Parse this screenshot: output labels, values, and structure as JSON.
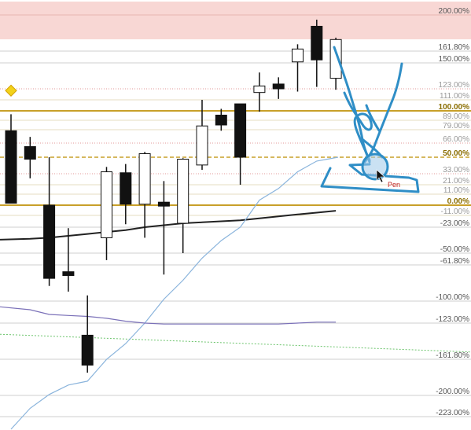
{
  "chart_data": {
    "type": "candlestick",
    "title": "",
    "xlabel": "",
    "ylabel": "",
    "ylim": [
      -230,
      210
    ],
    "grid": false,
    "levels": [
      {
        "value": 200,
        "label": "200.00%",
        "style": "band-top",
        "color": "#f4cccc"
      },
      {
        "value": 161.8,
        "label": "161.80%",
        "style": "gray"
      },
      {
        "value": 150,
        "label": "150.00%",
        "style": "gray"
      },
      {
        "value": 123,
        "label": "123.00%",
        "style": "red-dotted"
      },
      {
        "value": 111,
        "label": "111.00%",
        "style": "faint"
      },
      {
        "value": 100,
        "label": "100.00%",
        "style": "gold-solid"
      },
      {
        "value": 89,
        "label": "89.00%",
        "style": "faint"
      },
      {
        "value": 79,
        "label": "79.00%",
        "style": "faint"
      },
      {
        "value": 66,
        "label": "66.00%",
        "style": "red-dotted"
      },
      {
        "value": 50,
        "label": "50.00%",
        "style": "gold-dashed"
      },
      {
        "value": 33,
        "label": "33.00%",
        "style": "red-dotted"
      },
      {
        "value": 21,
        "label": "21.00%",
        "style": "faint"
      },
      {
        "value": 11,
        "label": "11.00%",
        "style": "faint"
      },
      {
        "value": 0,
        "label": "0.00%",
        "style": "gold-solid"
      },
      {
        "value": -11,
        "label": "-11.00%",
        "style": "faint"
      },
      {
        "value": -23,
        "label": "-23.00%",
        "style": "gray"
      },
      {
        "value": -50,
        "label": "-50.00%",
        "style": "gray"
      },
      {
        "value": -61.8,
        "label": "-61.80%",
        "style": "gray"
      },
      {
        "value": -100,
        "label": "-100.00%",
        "style": "gray"
      },
      {
        "value": -123,
        "label": "-123.00%",
        "style": "gray"
      },
      {
        "value": -161.8,
        "label": "-161.80%",
        "style": "gray"
      },
      {
        "value": -200,
        "label": "-200.00%",
        "style": "gray"
      },
      {
        "value": -223,
        "label": "-223.00%",
        "style": "gray"
      }
    ],
    "candles": [
      {
        "open": 78,
        "close": 2,
        "high": 96,
        "low": 2
      },
      {
        "open": 62,
        "close": 48,
        "high": 72,
        "low": 28
      },
      {
        "open": 0,
        "close": -76,
        "high": 50,
        "low": -84
      },
      {
        "open": -69,
        "close": -73,
        "high": -24,
        "low": -90
      },
      {
        "open": -136,
        "close": -168,
        "high": -94,
        "low": -176
      },
      {
        "open": -34,
        "close": 35,
        "high": 40,
        "low": -57
      },
      {
        "open": 34,
        "close": 1,
        "high": 43,
        "low": -20
      },
      {
        "open": 1,
        "close": 54,
        "high": 56,
        "low": -34
      },
      {
        "open": 3,
        "close": -1,
        "high": 25,
        "low": -72
      },
      {
        "open": -19,
        "close": 48,
        "high": 49,
        "low": -50
      },
      {
        "open": 42,
        "close": 83,
        "high": 111,
        "low": 37
      },
      {
        "open": 95,
        "close": 84,
        "high": 102,
        "low": 78
      },
      {
        "open": 107,
        "close": 50,
        "high": 107,
        "low": 21
      },
      {
        "open": 119,
        "close": 126,
        "high": 140,
        "low": 99
      },
      {
        "open": 128,
        "close": 123,
        "high": 135,
        "low": 112
      },
      {
        "open": 151,
        "close": 164,
        "high": 169,
        "low": 120
      },
      {
        "open": 188,
        "close": 153,
        "high": 195,
        "low": 125
      },
      {
        "open": 134,
        "close": 174,
        "high": 176,
        "low": 122
      }
    ],
    "overlays": [
      {
        "name": "",
        "color": "#222222",
        "values": [
          -36,
          -35,
          -34,
          -32,
          -30,
          -28,
          -26,
          -23,
          -21,
          -19,
          -18,
          -17,
          -16,
          -14,
          -12,
          -10,
          -8,
          -6
        ]
      },
      {
        "name": "",
        "color": "#8ab4dc",
        "values": [
          -240,
          -214,
          -199,
          -189,
          -185,
          -162,
          -145,
          -123,
          -98,
          -78,
          -55,
          -37,
          -23,
          5,
          17,
          35,
          46,
          50
        ]
      },
      {
        "name": "",
        "color": "#7a70b8",
        "values": [
          -106,
          -109,
          -114,
          -115,
          -116,
          -118,
          -121,
          -123,
          -124,
          -124,
          -124,
          -124,
          -124,
          -124,
          -124,
          -123,
          -122,
          -122
        ]
      }
    ],
    "green_dotted_line": {
      "from": -135,
      "to": -154
    },
    "marker": {
      "value": 110,
      "shape": "diamond",
      "color": "#f2d21a"
    }
  },
  "annotation": {
    "tool_label": "Pen",
    "ink_color": "#2f8ec6"
  }
}
